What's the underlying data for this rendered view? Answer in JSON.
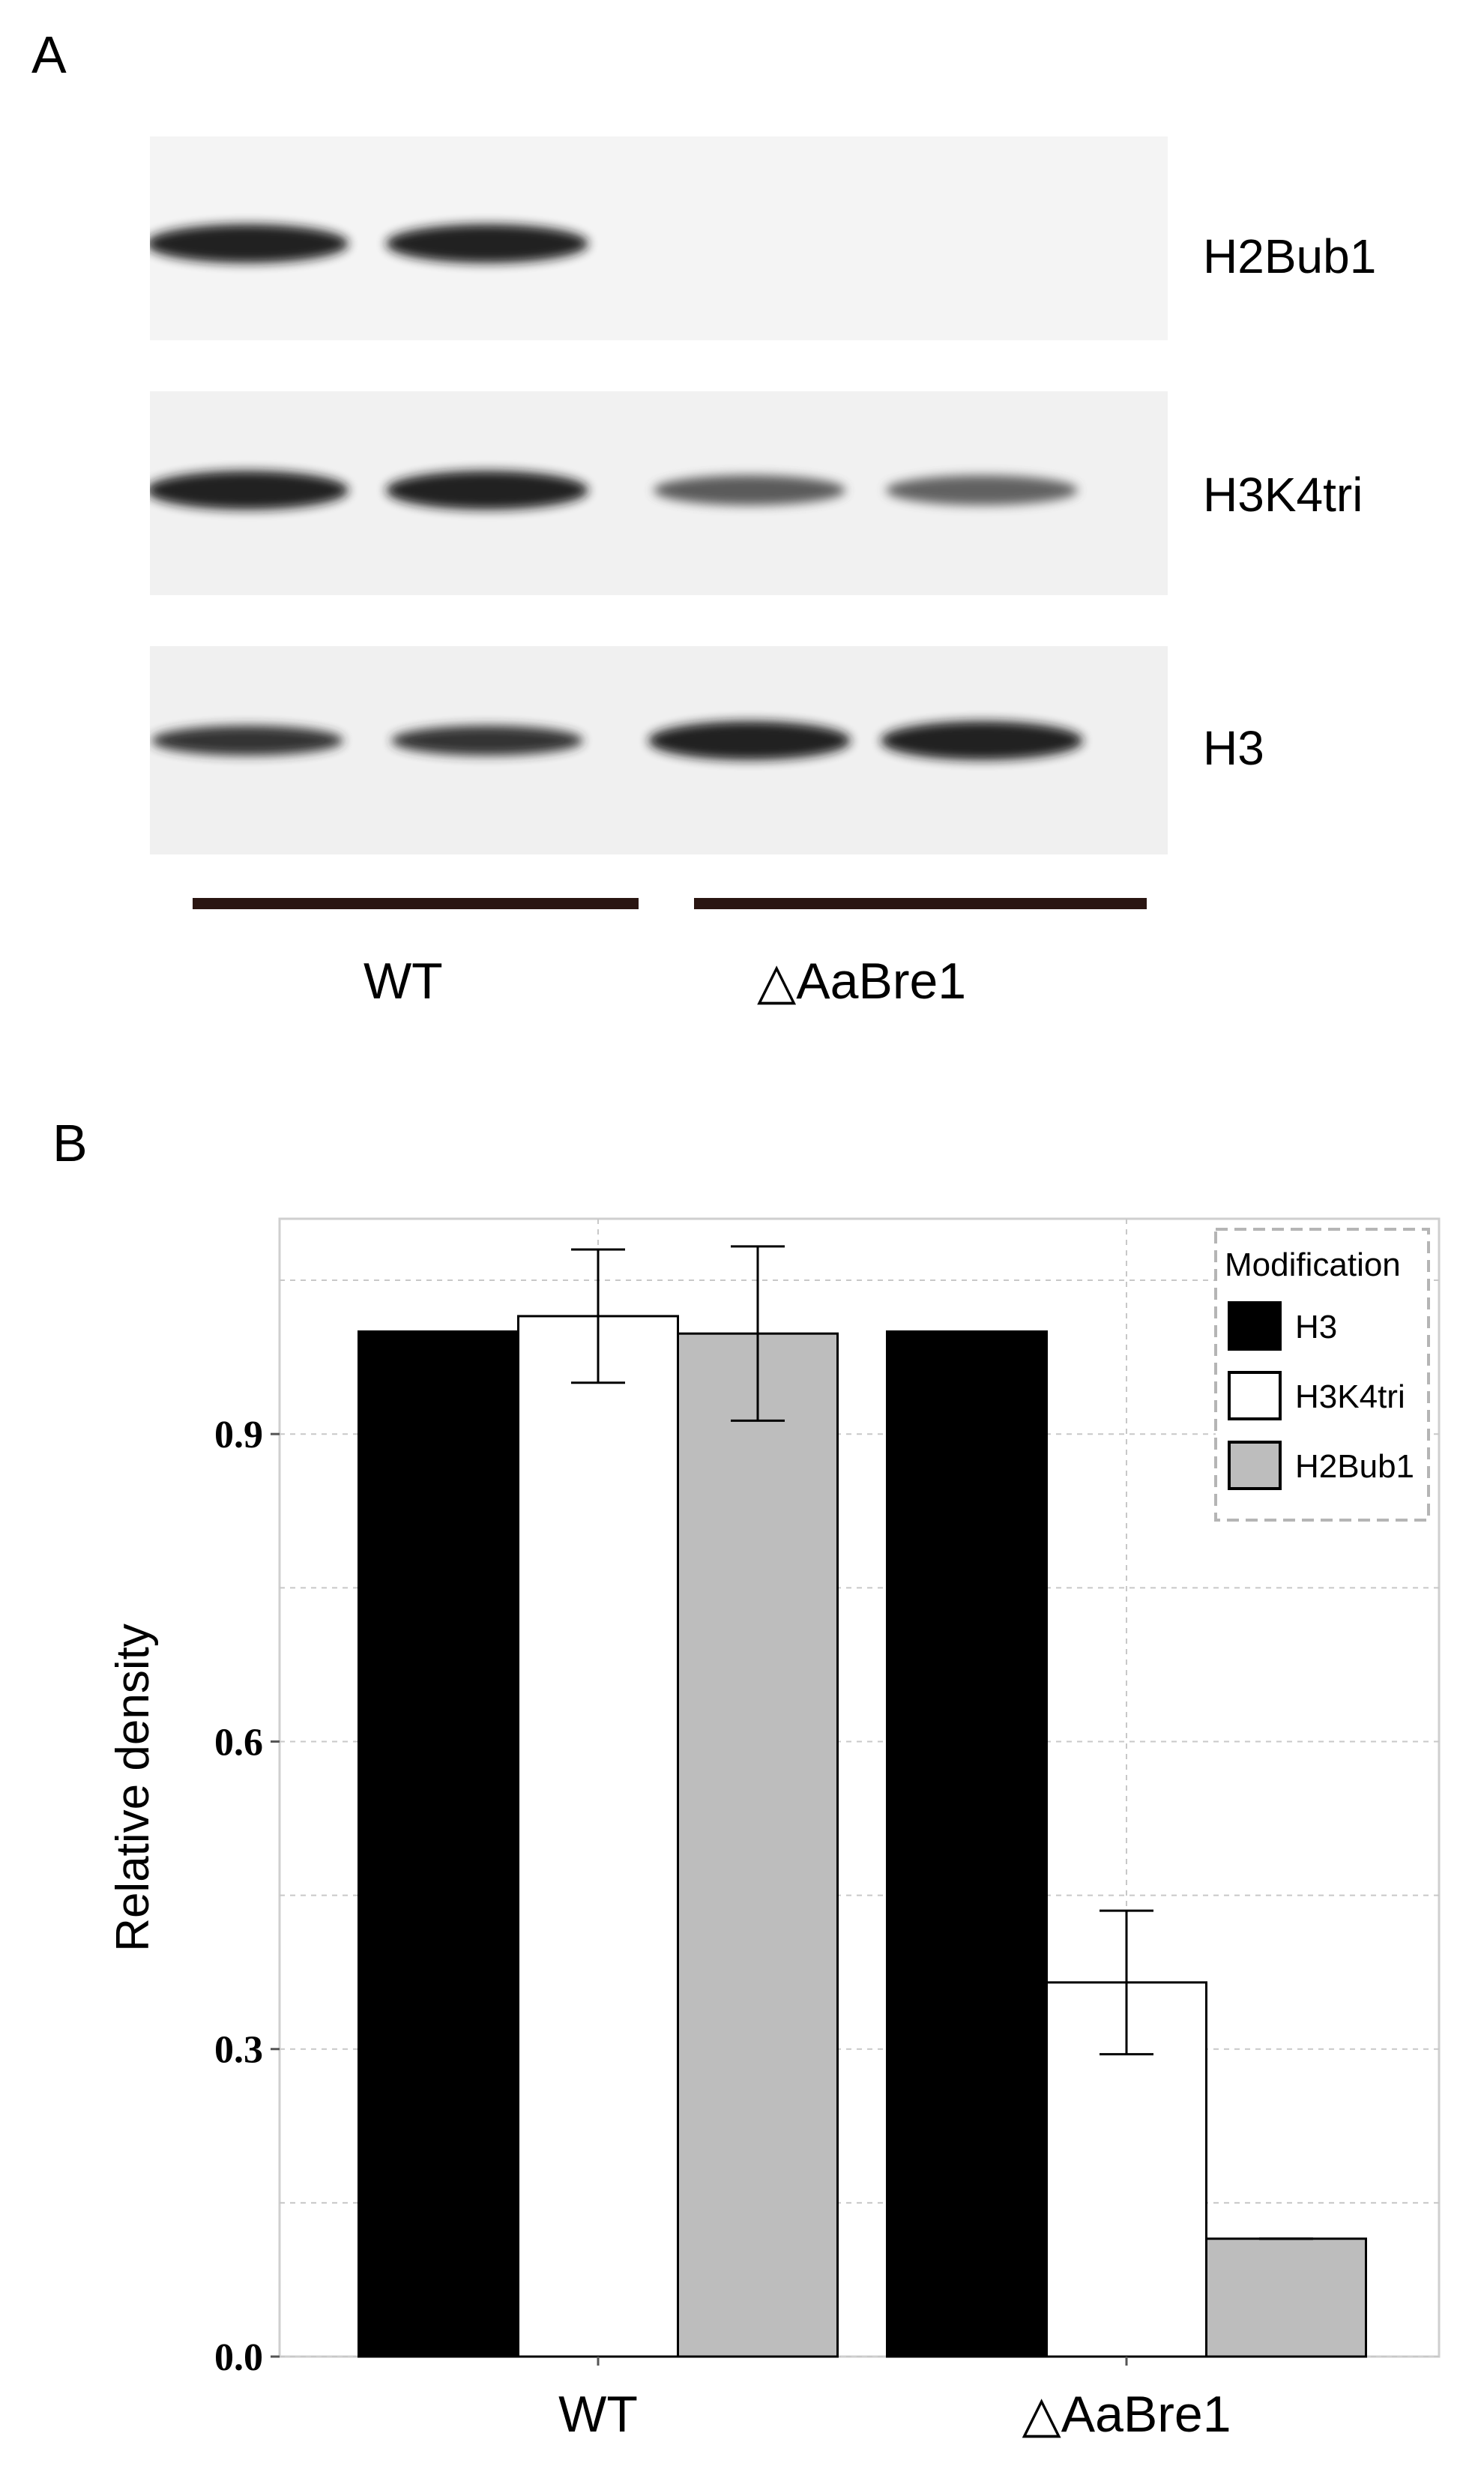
{
  "panel_a": {
    "letter": "A",
    "blots": [
      {
        "label": "H2Bub1",
        "bands": [
          {
            "lane": 1,
            "strength": 1.0
          },
          {
            "lane": 2,
            "strength": 1.0
          },
          {
            "lane": 3,
            "strength": 0
          },
          {
            "lane": 4,
            "strength": 0
          }
        ]
      },
      {
        "label": "H3K4tri",
        "bands": [
          {
            "lane": 1,
            "strength": 1.0
          },
          {
            "lane": 2,
            "strength": 1.0
          },
          {
            "lane": 3,
            "strength": 0.55
          },
          {
            "lane": 4,
            "strength": 0.5
          }
        ]
      },
      {
        "label": "H3",
        "bands": [
          {
            "lane": 1,
            "strength": 0.85
          },
          {
            "lane": 2,
            "strength": 0.85
          },
          {
            "lane": 3,
            "strength": 1.0
          },
          {
            "lane": 4,
            "strength": 1.0
          }
        ]
      }
    ],
    "groups": [
      {
        "label": "WT"
      },
      {
        "label": "△AaBre1"
      }
    ]
  },
  "panel_b": {
    "letter": "B"
  },
  "chart_data": {
    "type": "bar",
    "title": "",
    "xlabel": "",
    "ylabel": "Relative density",
    "categories": [
      "WT",
      "△AaBre1"
    ],
    "ylim": [
      0,
      1.11
    ],
    "yticks": [
      0.0,
      0.3,
      0.6,
      0.9
    ],
    "ytick_labels": [
      "0.0",
      "0.3",
      "0.6",
      "0.9"
    ],
    "grid": true,
    "legend": {
      "title": "Modification",
      "placement": "top-right"
    },
    "series": [
      {
        "name": "H3",
        "color": "#000000",
        "values": [
          1.0,
          1.0
        ],
        "errors": [
          null,
          null
        ]
      },
      {
        "name": "H3K4tri",
        "color": "#ffffff",
        "values": [
          1.015,
          0.365
        ],
        "errors": [
          0.065,
          0.07
        ]
      },
      {
        "name": "H2Bub1",
        "color": "#bdbdbd",
        "values": [
          0.998,
          0.115
        ],
        "errors": [
          0.085,
          0.0
        ]
      }
    ]
  }
}
